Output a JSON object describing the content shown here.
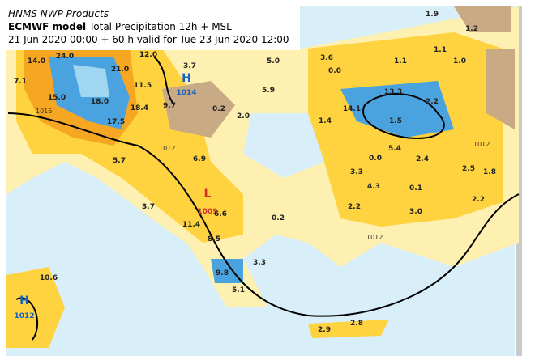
{
  "header": {
    "source": "HNMS NWP Products",
    "model": "ECMWF model",
    "product": "Total Precipitation 12h + MSL",
    "valid": "21 Jun 2020 00:00 + 60 h valid for Tue 23 Jun 2020 12:00"
  },
  "pressure_centers": [
    {
      "symbol": "H",
      "value": "1014"
    },
    {
      "symbol": "L",
      "value": "1009"
    },
    {
      "symbol": "H",
      "value": "1012"
    }
  ],
  "isobar_labels": [
    "1016",
    "1012",
    "1012",
    "1012"
  ],
  "precip_labels": [
    "14.0",
    "24.0",
    "21.0",
    "7.1",
    "15.0",
    "11.5",
    "18.0",
    "18.4",
    "17.5",
    "12.0",
    "3.7",
    "5.0",
    "3.6",
    "0.0",
    "1.9",
    "1.1",
    "1.0",
    "1.1",
    "1.2",
    "5.9",
    "0.2",
    "9.7",
    "14.1",
    "13.3",
    "2.2",
    "1.5",
    "1.4",
    "2.0",
    "5.7",
    "6.9",
    "0.0",
    "5.4",
    "2.4",
    "2.5",
    "1.8",
    "2.2",
    "3.3",
    "4.3",
    "0.1",
    "2.2",
    "3.7",
    "6.6",
    "11.4",
    "3.0",
    "0.2",
    "8.5",
    "3.3",
    "9.8",
    "5.1",
    "10.6",
    "2.9",
    "2.8"
  ]
}
